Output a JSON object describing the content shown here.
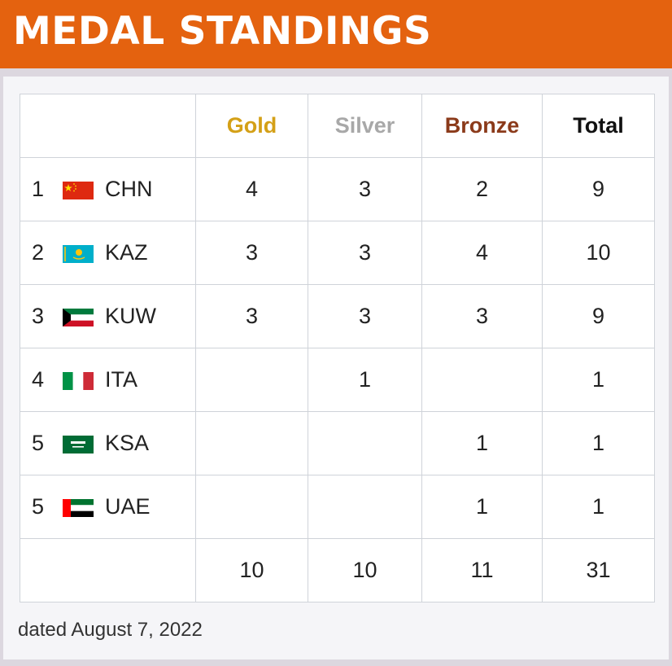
{
  "title": "MEDAL STANDINGS",
  "headers": {
    "nation": "",
    "gold": "Gold",
    "silver": "Silver",
    "bronze": "Bronze",
    "total": "Total"
  },
  "rows": [
    {
      "rank": "1",
      "flag_icon": "china-flag-icon",
      "nation": "CHN",
      "gold": "4",
      "silver": "3",
      "bronze": "2",
      "total": "9"
    },
    {
      "rank": "2",
      "flag_icon": "kazakhstan-flag-icon",
      "nation": "KAZ",
      "gold": "3",
      "silver": "3",
      "bronze": "4",
      "total": "10"
    },
    {
      "rank": "3",
      "flag_icon": "kuwait-flag-icon",
      "nation": "KUW",
      "gold": "3",
      "silver": "3",
      "bronze": "3",
      "total": "9"
    },
    {
      "rank": "4",
      "flag_icon": "italy-flag-icon",
      "nation": "ITA",
      "gold": "",
      "silver": "1",
      "bronze": "",
      "total": "1"
    },
    {
      "rank": "5",
      "flag_icon": "saudi-arabia-flag-icon",
      "nation": "KSA",
      "gold": "",
      "silver": "",
      "bronze": "1",
      "total": "1"
    },
    {
      "rank": "5",
      "flag_icon": "uae-flag-icon",
      "nation": "UAE",
      "gold": "",
      "silver": "",
      "bronze": "1",
      "total": "1"
    }
  ],
  "totals": {
    "gold": "10",
    "silver": "10",
    "bronze": "11",
    "total": "31"
  },
  "footnote": "dated August 7, 2022",
  "colors": {
    "banner": "#e4620f",
    "gold": "#d4a017",
    "silver": "#a8a8a8",
    "bronze": "#8b3a1a"
  }
}
